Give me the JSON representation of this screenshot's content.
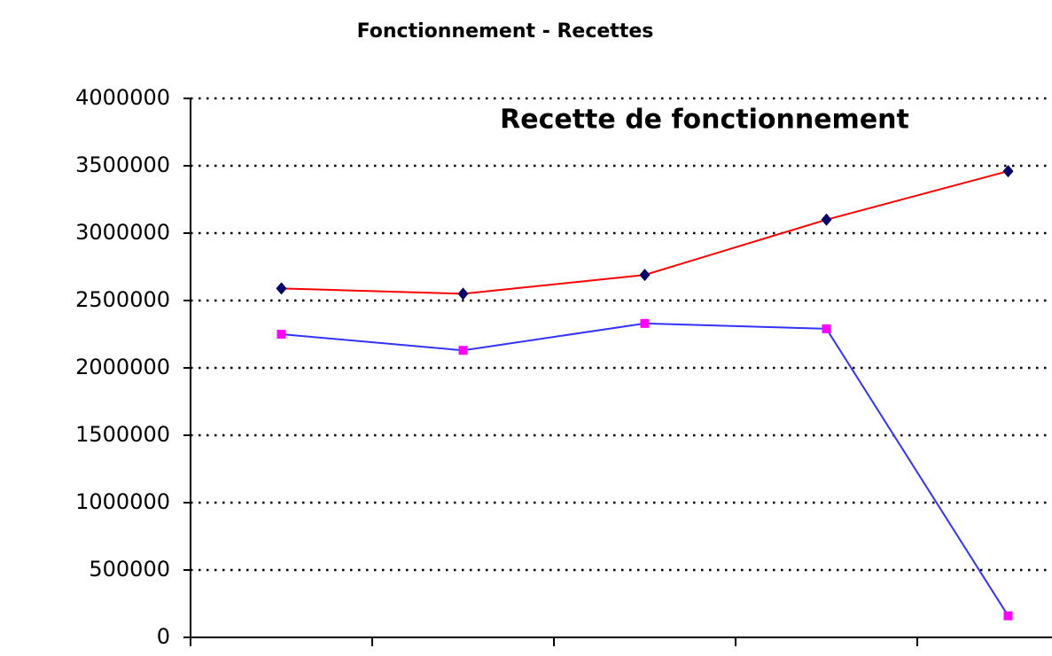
{
  "chart_data": {
    "type": "line",
    "title": "Fonctionnement - Recettes",
    "subtitle": "Recette de fonctionnement",
    "categories": [
      null,
      null,
      null,
      null,
      null
    ],
    "series": [
      {
        "color": "#ff0000",
        "marker_color": "#000066",
        "marker": "diamond",
        "values": [
          2590000,
          2550000,
          2690000,
          3100000,
          3460000
        ]
      },
      {
        "color": "#3333ff",
        "marker_color": "#ff00ff",
        "marker": "square",
        "values": [
          2250000,
          2130000,
          2330000,
          2290000,
          160000
        ]
      }
    ],
    "ylim": [
      0,
      4000000
    ],
    "yticks": [
      0,
      500000,
      1000000,
      1500000,
      2000000,
      2500000,
      3000000,
      3500000,
      4000000
    ],
    "grid": true
  }
}
